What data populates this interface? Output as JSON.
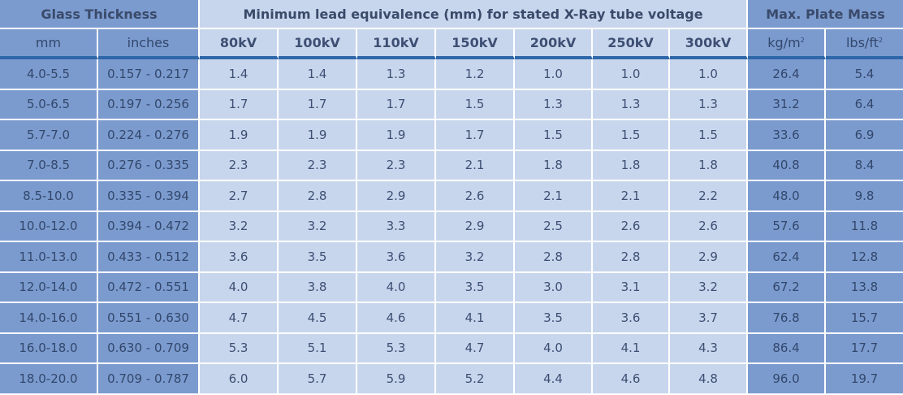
{
  "header": {
    "glass_thickness": "Glass Thickness",
    "lead_equivalence": "Minimum lead equivalence (mm) for stated X-Ray tube voltage",
    "max_plate_mass": "Max. Plate Mass",
    "columns": {
      "mm": "mm",
      "inches": "inches",
      "kv80": "80kV",
      "kv100": "100kV",
      "kv110": "110kV",
      "kv150": "150kV",
      "kv200": "200kV",
      "kv250": "250kV",
      "kv300": "300kV",
      "kg_base": "kg/m",
      "kg_sup": "2",
      "lbs_base": "lbs/ft",
      "lbs_sup": "2"
    }
  },
  "rows": [
    [
      "4.0-5.5",
      "0.157 - 0.217",
      "1.4",
      "1.4",
      "1.3",
      "1.2",
      "1.0",
      "1.0",
      "1.0",
      "26.4",
      "5.4"
    ],
    [
      "5.0-6.5",
      "0.197 - 0.256",
      "1.7",
      "1.7",
      "1.7",
      "1.5",
      "1.3",
      "1.3",
      "1.3",
      "31.2",
      "6.4"
    ],
    [
      "5.7-7.0",
      "0.224 - 0.276",
      "1.9",
      "1.9",
      "1.9",
      "1.7",
      "1.5",
      "1.5",
      "1.5",
      "33.6",
      "6.9"
    ],
    [
      "7.0-8.5",
      "0.276 - 0.335",
      "2.3",
      "2.3",
      "2.3",
      "2.1",
      "1.8",
      "1.8",
      "1.8",
      "40.8",
      "8.4"
    ],
    [
      "8.5-10.0",
      "0.335 - 0.394",
      "2.7",
      "2.8",
      "2.9",
      "2.6",
      "2.1",
      "2.1",
      "2.2",
      "48.0",
      "9.8"
    ],
    [
      "10.0-12.0",
      "0.394 - 0.472",
      "3.2",
      "3.2",
      "3.3",
      "2.9",
      "2.5",
      "2.6",
      "2.6",
      "57.6",
      "11.8"
    ],
    [
      "11.0-13.0",
      "0.433 - 0.512",
      "3.6",
      "3.5",
      "3.6",
      "3.2",
      "2.8",
      "2.8",
      "2.9",
      "62.4",
      "12.8"
    ],
    [
      "12.0-14.0",
      "0.472 - 0.551",
      "4.0",
      "3.8",
      "4.0",
      "3.5",
      "3.0",
      "3.1",
      "3.2",
      "67.2",
      "13.8"
    ],
    [
      "14.0-16.0",
      "0.551 - 0.630",
      "4.7",
      "4.5",
      "4.6",
      "4.1",
      "3.5",
      "3.6",
      "3.7",
      "76.8",
      "15.7"
    ],
    [
      "16.0-18.0",
      "0.630 - 0.709",
      "5.3",
      "5.1",
      "5.3",
      "4.7",
      "4.0",
      "4.1",
      "4.3",
      "86.4",
      "17.7"
    ],
    [
      "18.0-20.0",
      "0.709 - 0.787",
      "6.0",
      "5.7",
      "5.9",
      "5.2",
      "4.4",
      "4.6",
      "4.8",
      "96.0",
      "19.7"
    ]
  ],
  "colors": {
    "dark_cell": "#7b9bcf",
    "light_cell": "#c8d6ed",
    "header_rule": "#2f67a8",
    "text": "#3d4f73"
  }
}
